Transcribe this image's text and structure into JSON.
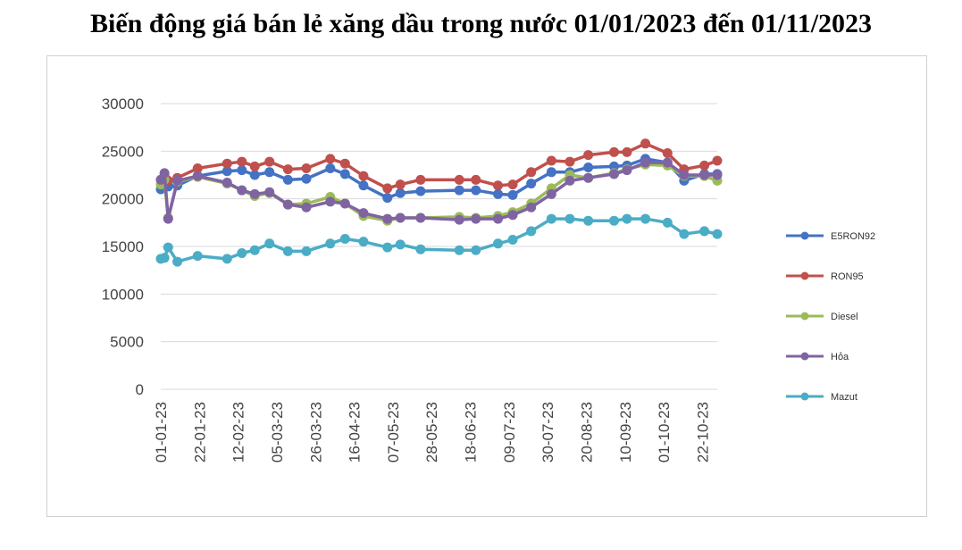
{
  "title": "Biến động giá bán lẻ xăng dầu trong nước 01/01/2023 đến 01/11/2023",
  "chart_data": {
    "type": "line",
    "title": "Biến động giá bán lẻ xăng dầu trong nước 01/01/2023 đến 01/11/2023",
    "ylim": [
      0,
      30000
    ],
    "yticks": [
      0,
      5000,
      10000,
      15000,
      20000,
      25000,
      30000
    ],
    "xlim": [
      "2023-01-01",
      "2023-10-30"
    ],
    "xtick_labels": [
      "01-01-23",
      "22-01-23",
      "12-02-23",
      "05-03-23",
      "26-03-23",
      "16-04-23",
      "07-05-23",
      "28-05-23",
      "18-06-23",
      "09-07-23",
      "30-07-23",
      "20-08-23",
      "10-09-23",
      "01-10-23",
      "22-10-23"
    ],
    "grid": "horizontal",
    "legend_position": "right",
    "x": [
      "2023-01-01",
      "2023-01-03",
      "2023-01-05",
      "2023-01-10",
      "2023-01-21",
      "2023-02-06",
      "2023-02-14",
      "2023-02-21",
      "2023-03-01",
      "2023-03-11",
      "2023-03-21",
      "2023-04-03",
      "2023-04-11",
      "2023-04-21",
      "2023-05-04",
      "2023-05-11",
      "2023-05-22",
      "2023-06-12",
      "2023-06-21",
      "2023-07-03",
      "2023-07-11",
      "2023-07-21",
      "2023-08-01",
      "2023-08-11",
      "2023-08-21",
      "2023-09-04",
      "2023-09-11",
      "2023-09-21",
      "2023-10-03",
      "2023-10-12",
      "2023-10-23",
      "2023-10-30"
    ],
    "series": [
      {
        "name": "E5RON92",
        "color": "#4472C4",
        "values": [
          21000,
          21500,
          21300,
          21400,
          22400,
          22900,
          23000,
          22500,
          22800,
          22000,
          22100,
          23200,
          22600,
          21400,
          20100,
          20600,
          20800,
          20900,
          20900,
          20500,
          20400,
          21600,
          22800,
          22800,
          23300,
          23400,
          23500,
          24200,
          23800,
          21900,
          22600,
          22600
        ]
      },
      {
        "name": "RON95",
        "color": "#C0504D",
        "values": [
          22000,
          22400,
          21900,
          22200,
          23200,
          23700,
          23900,
          23400,
          23900,
          23100,
          23200,
          24200,
          23700,
          22400,
          21100,
          21500,
          22000,
          22000,
          22000,
          21400,
          21500,
          22800,
          24000,
          23900,
          24600,
          24900,
          24900,
          25800,
          24800,
          23100,
          23500,
          24000
        ]
      },
      {
        "name": "Diesel",
        "color": "#9BBB59",
        "values": [
          21500,
          22000,
          18000,
          21800,
          22300,
          21600,
          20900,
          20300,
          20600,
          19400,
          19500,
          20200,
          19500,
          18200,
          17700,
          18000,
          18000,
          18100,
          18000,
          18200,
          18600,
          19500,
          21100,
          22500,
          22200,
          22700,
          23100,
          23600,
          23500,
          22400,
          22400,
          21900
        ]
      },
      {
        "name": "Hỏa",
        "color": "#8064A2",
        "values": [
          22000,
          22700,
          17900,
          21900,
          22400,
          21700,
          20900,
          20500,
          20700,
          19400,
          19100,
          19700,
          19500,
          18500,
          17900,
          18000,
          18000,
          17800,
          17900,
          17900,
          18300,
          19100,
          20500,
          21900,
          22200,
          22600,
          23000,
          23800,
          23800,
          22500,
          22500,
          22500
        ]
      },
      {
        "name": "Mazut",
        "color": "#4BACC6",
        "values": [
          13700,
          13800,
          14900,
          13400,
          14000,
          13700,
          14300,
          14600,
          15300,
          14500,
          14500,
          15300,
          15800,
          15500,
          14900,
          15200,
          14700,
          14600,
          14600,
          15300,
          15700,
          16600,
          17900,
          17900,
          17700,
          17700,
          17900,
          17900,
          17500,
          16300,
          16600,
          16300
        ]
      }
    ]
  }
}
